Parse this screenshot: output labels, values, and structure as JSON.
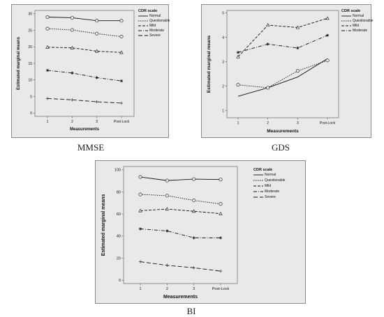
{
  "captions": {
    "mmse": "MMSE",
    "gds": "GDS",
    "bi": "BI"
  },
  "chart_data": [
    {
      "id": "mmse",
      "type": "line",
      "title": "",
      "xlabel": "Measurements",
      "ylabel": "Estimated marginal means",
      "categories": [
        "1",
        "2",
        "3",
        "Post-Lock"
      ],
      "ylim": [
        -1,
        31
      ],
      "yticks": [
        0,
        5,
        10,
        15,
        20,
        25,
        30
      ],
      "grid": false,
      "legend_title": "CDR scale",
      "legend_position": "top-right",
      "series": [
        {
          "name": "Normal",
          "values": [
            29.0,
            28.8,
            27.9,
            27.9
          ],
          "dash": "",
          "marker": "o"
        },
        {
          "name": "Questionable",
          "values": [
            25.5,
            25.1,
            24.0,
            23.1
          ],
          "dash": "1.5,1.5",
          "marker": "o"
        },
        {
          "name": "Mild",
          "values": [
            19.9,
            19.7,
            18.7,
            18.3
          ],
          "dash": "4,2",
          "marker": "^"
        },
        {
          "name": "Moderate",
          "values": [
            12.9,
            12.1,
            10.7,
            9.7
          ],
          "dash": "5,2,1,2",
          "marker": "*"
        },
        {
          "name": "Severe",
          "values": [
            4.4,
            4.0,
            3.4,
            3.0
          ],
          "dash": "6,3",
          "marker": "+"
        }
      ]
    },
    {
      "id": "gds",
      "type": "line",
      "title": "",
      "xlabel": "Measurements",
      "ylabel": "Estimated marginal means",
      "categories": [
        "1",
        "2",
        "3",
        "Post-Lock"
      ],
      "ylim": [
        0.7,
        5.1
      ],
      "yticks": [
        1,
        2,
        3,
        4,
        5
      ],
      "grid": false,
      "legend_title": "CDR scale",
      "legend_position": "top-right",
      "series": [
        {
          "name": "Normal",
          "values": [
            1.58,
            1.93,
            2.37,
            3.12
          ],
          "dash": "",
          "marker": ""
        },
        {
          "name": "Questionable",
          "values": [
            2.05,
            1.93,
            2.62,
            3.05
          ],
          "dash": "1.5,1.5",
          "marker": "o"
        },
        {
          "name": "Mild",
          "values": [
            3.2,
            4.5,
            4.4,
            4.78
          ],
          "dash": "4,2",
          "marker": "^"
        },
        {
          "name": "Moderate",
          "values": [
            3.38,
            3.72,
            3.56,
            4.08
          ],
          "dash": "5,2,1,2",
          "marker": "*"
        }
      ]
    },
    {
      "id": "bi",
      "type": "line",
      "title": "",
      "xlabel": "Measurements",
      "ylabel": "Estimated marginal means",
      "categories": [
        "1",
        "2",
        "3",
        "Post-Lock"
      ],
      "ylim": [
        -3,
        103
      ],
      "yticks": [
        0,
        20,
        40,
        60,
        80,
        100
      ],
      "grid": false,
      "legend_title": "CDR scale",
      "legend_position": "top-right",
      "series": [
        {
          "name": "Normal",
          "values": [
            93.5,
            90.3,
            91.6,
            91.2
          ],
          "dash": "",
          "marker": "o"
        },
        {
          "name": "Questionable",
          "values": [
            77.7,
            76.6,
            72.3,
            69.1
          ],
          "dash": "1.5,1.5",
          "marker": "o"
        },
        {
          "name": "Mild",
          "values": [
            63.0,
            64.5,
            62.5,
            60.3
          ],
          "dash": "4,2",
          "marker": "^"
        },
        {
          "name": "Moderate",
          "values": [
            46.5,
            44.7,
            38.4,
            38.4
          ],
          "dash": "5,2,1,2",
          "marker": "*"
        },
        {
          "name": "Severe",
          "values": [
            16.8,
            13.5,
            11.3,
            8.3
          ],
          "dash": "6,3",
          "marker": "+"
        }
      ]
    }
  ]
}
